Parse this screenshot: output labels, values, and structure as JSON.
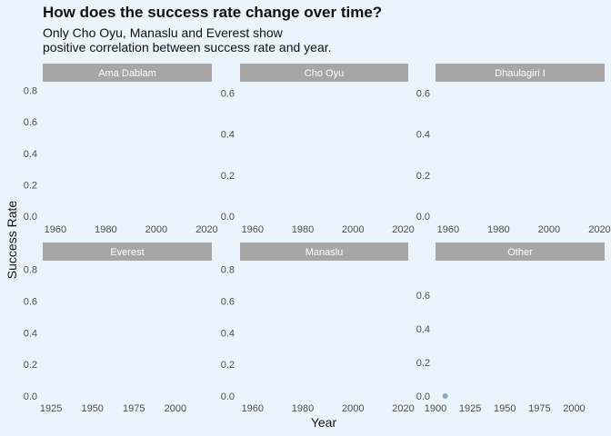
{
  "title": "How does the success rate change over time?",
  "subtitle": "Only Cho Oyu, Manaslu and Everest show\npositive correlation between success rate and year.",
  "colors": {
    "background": "#eaf4fd",
    "strip": "#a6a6a6",
    "point": "#7ea3ba"
  },
  "chart_data": {
    "type": "scatter",
    "xlabel": "Year",
    "ylabel": "Success Rate",
    "grid": false,
    "facets": [
      {
        "name": "Ama Dablam",
        "xlim": [
          1955,
          2022
        ],
        "ylim": [
          0,
          0.85
        ],
        "xticks": [
          1960,
          1980,
          2000,
          2020
        ],
        "yticks": [
          0.0,
          0.2,
          0.4,
          0.6,
          0.8
        ],
        "xtick_labels": [
          "1960",
          "1980",
          "2000",
          "2020"
        ],
        "ytick_labels": [
          "0.0",
          "0.2",
          "0.4",
          "0.6",
          "0.8"
        ],
        "points": []
      },
      {
        "name": "Cho Oyu",
        "xlim": [
          1955,
          2022
        ],
        "ylim": [
          0,
          0.65
        ],
        "xticks": [
          1960,
          1980,
          2000,
          2020
        ],
        "yticks": [
          0.0,
          0.2,
          0.4,
          0.6
        ],
        "xtick_labels": [
          "1960",
          "1980",
          "2000",
          "2020"
        ],
        "ytick_labels": [
          "0.0",
          "0.2",
          "0.4",
          "0.6"
        ],
        "points": []
      },
      {
        "name": "Dhaulagiri I",
        "xlim": [
          1955,
          2022
        ],
        "ylim": [
          0,
          0.65
        ],
        "xticks": [
          1960,
          1980,
          2000,
          2020
        ],
        "yticks": [
          0.0,
          0.2,
          0.4,
          0.6
        ],
        "xtick_labels": [
          "1960",
          "1980",
          "2000",
          "2020"
        ],
        "ytick_labels": [
          "0.0",
          "0.2",
          "0.4",
          "0.6"
        ],
        "points": []
      },
      {
        "name": "Everest",
        "xlim": [
          1920,
          2022
        ],
        "ylim": [
          0,
          0.85
        ],
        "xticks": [
          1925,
          1950,
          1975,
          2000
        ],
        "yticks": [
          0.0,
          0.2,
          0.4,
          0.6,
          0.8
        ],
        "xtick_labels": [
          "1925",
          "1950",
          "1975",
          "2000"
        ],
        "ytick_labels": [
          "0.0",
          "0.2",
          "0.4",
          "0.6",
          "0.8"
        ],
        "points": []
      },
      {
        "name": "Manaslu",
        "xlim": [
          1955,
          2022
        ],
        "ylim": [
          0,
          0.85
        ],
        "xticks": [
          1960,
          1980,
          2000,
          2020
        ],
        "yticks": [
          0.0,
          0.2,
          0.4,
          0.6,
          0.8
        ],
        "xtick_labels": [
          "1960",
          "1980",
          "2000",
          "2020"
        ],
        "ytick_labels": [
          "0.0",
          "0.2",
          "0.4",
          "0.6",
          "0.8"
        ],
        "points": []
      },
      {
        "name": "Other",
        "xlim": [
          1900,
          2022
        ],
        "ylim": [
          0,
          0.8
        ],
        "xticks": [
          1900,
          1925,
          1950,
          1975,
          2000
        ],
        "yticks": [
          0.0,
          0.2,
          0.4,
          0.6
        ],
        "xtick_labels": [
          "1900",
          "1925",
          "1950",
          "1975",
          "2000"
        ],
        "ytick_labels": [
          "0.0",
          "0.2",
          "0.4",
          "0.6"
        ],
        "points": [
          {
            "x": 1907,
            "y": 0.0
          }
        ]
      }
    ]
  }
}
